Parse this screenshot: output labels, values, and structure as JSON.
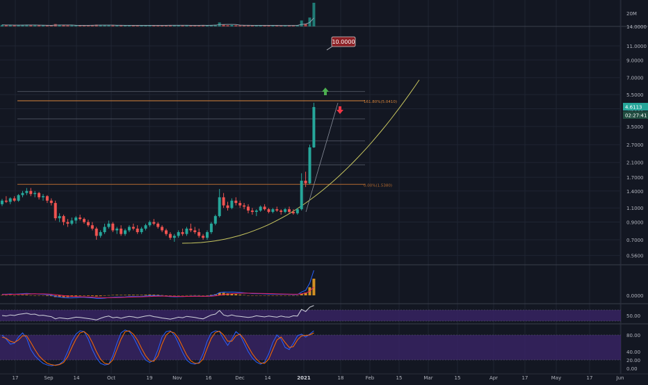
{
  "chart_data": {
    "type": "candlestick",
    "symbol_quote": "USDT",
    "price_axis": {
      "scale": "log",
      "ticks": [
        11.0,
        9.0,
        7.0,
        5.5,
        4.5,
        3.5,
        2.7,
        2.1,
        1.7,
        1.4,
        1.1,
        0.9,
        0.7,
        0.56
      ],
      "tick_labels": [
        "11.0000",
        "9.0000",
        "7.0000",
        "5.5000",
        "4.5000",
        "3.5000",
        "2.7000",
        "2.1000",
        "1.7000",
        "1.4000",
        "1.1000",
        "0.9000",
        "0.7000",
        "0.5600"
      ],
      "current_price": "4.6113",
      "countdown": "02:27:41",
      "target_label": "10.0000",
      "volume_tick": "20M",
      "volume_tick_top": "14.0000"
    },
    "time_axis": {
      "labels": [
        "17",
        "Sep",
        "14",
        "Oct",
        "19",
        "Nov",
        "16",
        "Dec",
        "14",
        "2021",
        "18",
        "Feb",
        "15",
        "Mar",
        "15",
        "Apr",
        "17",
        "May",
        "17",
        "Jun"
      ]
    },
    "fib_levels": [
      {
        "label": "161.80%(5.0410)",
        "price": 5.041
      },
      {
        "label": "",
        "price": 5.75
      },
      {
        "label": "",
        "price": 3.9
      },
      {
        "label": "",
        "price": 2.85
      },
      {
        "label": "",
        "price": 2.03
      },
      {
        "label": "0.00%(1.5380)",
        "price": 1.538
      }
    ],
    "candles": [
      {
        "o": 1.16,
        "h": 1.25,
        "l": 1.13,
        "c": 1.22
      },
      {
        "o": 1.22,
        "h": 1.3,
        "l": 1.18,
        "c": 1.2
      },
      {
        "o": 1.2,
        "h": 1.28,
        "l": 1.16,
        "c": 1.26
      },
      {
        "o": 1.26,
        "h": 1.3,
        "l": 1.2,
        "c": 1.22
      },
      {
        "o": 1.22,
        "h": 1.34,
        "l": 1.2,
        "c": 1.32
      },
      {
        "o": 1.32,
        "h": 1.4,
        "l": 1.28,
        "c": 1.36
      },
      {
        "o": 1.36,
        "h": 1.46,
        "l": 1.32,
        "c": 1.4
      },
      {
        "o": 1.4,
        "h": 1.46,
        "l": 1.3,
        "c": 1.34
      },
      {
        "o": 1.34,
        "h": 1.4,
        "l": 1.28,
        "c": 1.36
      },
      {
        "o": 1.36,
        "h": 1.38,
        "l": 1.24,
        "c": 1.28
      },
      {
        "o": 1.28,
        "h": 1.34,
        "l": 1.22,
        "c": 1.3
      },
      {
        "o": 1.3,
        "h": 1.32,
        "l": 1.18,
        "c": 1.22
      },
      {
        "o": 1.22,
        "h": 1.26,
        "l": 1.14,
        "c": 1.18
      },
      {
        "o": 1.18,
        "h": 1.22,
        "l": 0.92,
        "c": 0.95
      },
      {
        "o": 0.95,
        "h": 1.02,
        "l": 0.9,
        "c": 0.98
      },
      {
        "o": 0.98,
        "h": 1.0,
        "l": 0.86,
        "c": 0.9
      },
      {
        "o": 0.9,
        "h": 0.94,
        "l": 0.84,
        "c": 0.88
      },
      {
        "o": 0.88,
        "h": 0.96,
        "l": 0.86,
        "c": 0.92
      },
      {
        "o": 0.92,
        "h": 0.98,
        "l": 0.88,
        "c": 0.96
      },
      {
        "o": 0.96,
        "h": 1.0,
        "l": 0.92,
        "c": 0.94
      },
      {
        "o": 0.94,
        "h": 0.96,
        "l": 0.88,
        "c": 0.9
      },
      {
        "o": 0.9,
        "h": 0.93,
        "l": 0.84,
        "c": 0.86
      },
      {
        "o": 0.86,
        "h": 0.9,
        "l": 0.8,
        "c": 0.82
      },
      {
        "o": 0.82,
        "h": 0.84,
        "l": 0.7,
        "c": 0.74
      },
      {
        "o": 0.74,
        "h": 0.8,
        "l": 0.72,
        "c": 0.78
      },
      {
        "o": 0.78,
        "h": 0.88,
        "l": 0.76,
        "c": 0.84
      },
      {
        "o": 0.84,
        "h": 0.92,
        "l": 0.82,
        "c": 0.88
      },
      {
        "o": 0.88,
        "h": 0.9,
        "l": 0.78,
        "c": 0.8
      },
      {
        "o": 0.8,
        "h": 0.84,
        "l": 0.76,
        "c": 0.82
      },
      {
        "o": 0.82,
        "h": 0.86,
        "l": 0.74,
        "c": 0.76
      },
      {
        "o": 0.76,
        "h": 0.82,
        "l": 0.74,
        "c": 0.8
      },
      {
        "o": 0.8,
        "h": 0.86,
        "l": 0.78,
        "c": 0.84
      },
      {
        "o": 0.84,
        "h": 0.88,
        "l": 0.8,
        "c": 0.82
      },
      {
        "o": 0.82,
        "h": 0.86,
        "l": 0.76,
        "c": 0.78
      },
      {
        "o": 0.78,
        "h": 0.84,
        "l": 0.76,
        "c": 0.82
      },
      {
        "o": 0.82,
        "h": 0.88,
        "l": 0.8,
        "c": 0.86
      },
      {
        "o": 0.86,
        "h": 0.92,
        "l": 0.84,
        "c": 0.9
      },
      {
        "o": 0.9,
        "h": 0.94,
        "l": 0.86,
        "c": 0.88
      },
      {
        "o": 0.88,
        "h": 0.9,
        "l": 0.82,
        "c": 0.84
      },
      {
        "o": 0.84,
        "h": 0.86,
        "l": 0.78,
        "c": 0.8
      },
      {
        "o": 0.8,
        "h": 0.82,
        "l": 0.74,
        "c": 0.76
      },
      {
        "o": 0.76,
        "h": 0.78,
        "l": 0.7,
        "c": 0.72
      },
      {
        "o": 0.72,
        "h": 0.76,
        "l": 0.68,
        "c": 0.74
      },
      {
        "o": 0.74,
        "h": 0.8,
        "l": 0.72,
        "c": 0.78
      },
      {
        "o": 0.78,
        "h": 0.82,
        "l": 0.74,
        "c": 0.76
      },
      {
        "o": 0.76,
        "h": 0.84,
        "l": 0.74,
        "c": 0.82
      },
      {
        "o": 0.82,
        "h": 0.88,
        "l": 0.78,
        "c": 0.8
      },
      {
        "o": 0.8,
        "h": 0.84,
        "l": 0.76,
        "c": 0.78
      },
      {
        "o": 0.78,
        "h": 0.82,
        "l": 0.72,
        "c": 0.74
      },
      {
        "o": 0.74,
        "h": 0.76,
        "l": 0.7,
        "c": 0.72
      },
      {
        "o": 0.72,
        "h": 0.8,
        "l": 0.7,
        "c": 0.78
      },
      {
        "o": 0.78,
        "h": 0.9,
        "l": 0.76,
        "c": 0.88
      },
      {
        "o": 0.88,
        "h": 1.0,
        "l": 0.86,
        "c": 0.98
      },
      {
        "o": 0.98,
        "h": 1.44,
        "l": 0.96,
        "c": 1.28
      },
      {
        "o": 1.28,
        "h": 1.36,
        "l": 1.1,
        "c": 1.14
      },
      {
        "o": 1.14,
        "h": 1.2,
        "l": 1.06,
        "c": 1.1
      },
      {
        "o": 1.1,
        "h": 1.26,
        "l": 1.08,
        "c": 1.22
      },
      {
        "o": 1.22,
        "h": 1.28,
        "l": 1.14,
        "c": 1.18
      },
      {
        "o": 1.18,
        "h": 1.22,
        "l": 1.1,
        "c": 1.14
      },
      {
        "o": 1.14,
        "h": 1.18,
        "l": 1.08,
        "c": 1.12
      },
      {
        "o": 1.12,
        "h": 1.16,
        "l": 1.02,
        "c": 1.06
      },
      {
        "o": 1.06,
        "h": 1.1,
        "l": 1.0,
        "c": 1.04
      },
      {
        "o": 1.04,
        "h": 1.08,
        "l": 0.98,
        "c": 1.06
      },
      {
        "o": 1.06,
        "h": 1.14,
        "l": 1.04,
        "c": 1.12
      },
      {
        "o": 1.12,
        "h": 1.16,
        "l": 1.06,
        "c": 1.08
      },
      {
        "o": 1.08,
        "h": 1.1,
        "l": 1.02,
        "c": 1.04
      },
      {
        "o": 1.04,
        "h": 1.1,
        "l": 1.02,
        "c": 1.08
      },
      {
        "o": 1.08,
        "h": 1.12,
        "l": 1.04,
        "c": 1.06
      },
      {
        "o": 1.06,
        "h": 1.08,
        "l": 1.0,
        "c": 1.04
      },
      {
        "o": 1.04,
        "h": 1.1,
        "l": 1.02,
        "c": 1.08
      },
      {
        "o": 1.08,
        "h": 1.12,
        "l": 1.02,
        "c": 1.04
      },
      {
        "o": 1.04,
        "h": 1.08,
        "l": 1.0,
        "c": 1.02
      },
      {
        "o": 1.02,
        "h": 1.1,
        "l": 1.0,
        "c": 1.08
      },
      {
        "o": 1.08,
        "h": 1.8,
        "l": 1.06,
        "c": 1.62
      },
      {
        "o": 1.62,
        "h": 1.84,
        "l": 1.48,
        "c": 1.56
      },
      {
        "o": 1.56,
        "h": 2.7,
        "l": 1.54,
        "c": 2.6
      },
      {
        "o": 2.6,
        "h": 4.9,
        "l": 2.58,
        "c": 4.61
      }
    ],
    "volumes": [
      8,
      6,
      7,
      5,
      7,
      8,
      9,
      6,
      5,
      6,
      5,
      6,
      5,
      12,
      7,
      6,
      5,
      5,
      6,
      5,
      5,
      6,
      6,
      9,
      6,
      6,
      6,
      5,
      5,
      6,
      5,
      6,
      5,
      5,
      5,
      6,
      6,
      5,
      5,
      5,
      6,
      7,
      5,
      5,
      5,
      6,
      5,
      5,
      6,
      6,
      5,
      7,
      8,
      20,
      9,
      6,
      7,
      6,
      5,
      5,
      6,
      5,
      5,
      6,
      5,
      5,
      5,
      5,
      5,
      5,
      5,
      5,
      6,
      30,
      14,
      45,
      120
    ],
    "macd": {
      "macd_line": [
        0.02,
        0.02,
        0.025,
        0.02,
        0.025,
        0.03,
        0.035,
        0.03,
        0.028,
        0.022,
        0.02,
        0.012,
        0.005,
        -0.02,
        -0.03,
        -0.04,
        -0.045,
        -0.045,
        -0.04,
        -0.035,
        -0.035,
        -0.04,
        -0.045,
        -0.055,
        -0.055,
        -0.05,
        -0.04,
        -0.035,
        -0.03,
        -0.03,
        -0.028,
        -0.022,
        -0.02,
        -0.02,
        -0.018,
        -0.012,
        -0.005,
        -0.004,
        -0.005,
        -0.01,
        -0.015,
        -0.022,
        -0.025,
        -0.024,
        -0.022,
        -0.018,
        -0.015,
        -0.014,
        -0.015,
        -0.018,
        -0.016,
        -0.005,
        0.01,
        0.05,
        0.06,
        0.058,
        0.06,
        0.058,
        0.052,
        0.046,
        0.038,
        0.032,
        0.03,
        0.03,
        0.027,
        0.024,
        0.022,
        0.02,
        0.018,
        0.018,
        0.017,
        0.014,
        0.014,
        0.06,
        0.09,
        0.22,
        0.45
      ],
      "signal_line": [
        0.015,
        0.016,
        0.018,
        0.019,
        0.02,
        0.022,
        0.025,
        0.027,
        0.028,
        0.027,
        0.026,
        0.023,
        0.02,
        0.012,
        0.004,
        -0.004,
        -0.012,
        -0.018,
        -0.022,
        -0.025,
        -0.027,
        -0.029,
        -0.032,
        -0.036,
        -0.04,
        -0.042,
        -0.042,
        -0.041,
        -0.039,
        -0.037,
        -0.035,
        -0.032,
        -0.03,
        -0.028,
        -0.026,
        -0.023,
        -0.02,
        -0.017,
        -0.015,
        -0.014,
        -0.014,
        -0.016,
        -0.018,
        -0.019,
        -0.02,
        -0.019,
        -0.018,
        -0.017,
        -0.017,
        -0.017,
        -0.017,
        -0.015,
        -0.01,
        0.002,
        0.014,
        0.022,
        0.03,
        0.035,
        0.038,
        0.04,
        0.039,
        0.038,
        0.036,
        0.035,
        0.033,
        0.031,
        0.029,
        0.027,
        0.025,
        0.024,
        0.022,
        0.021,
        0.02,
        0.028,
        0.04,
        0.075,
        0.15
      ],
      "zero_label": "0.0000"
    },
    "rsi": {
      "values": [
        50,
        48,
        52,
        50,
        54,
        56,
        58,
        54,
        55,
        50,
        51,
        48,
        46,
        38,
        42,
        40,
        38,
        41,
        44,
        43,
        41,
        39,
        37,
        34,
        40,
        45,
        48,
        42,
        44,
        40,
        44,
        47,
        45,
        42,
        45,
        48,
        50,
        46,
        44,
        41,
        39,
        37,
        40,
        44,
        42,
        47,
        45,
        43,
        40,
        38,
        45,
        52,
        55,
        68,
        52,
        48,
        52,
        48,
        47,
        45,
        43,
        45,
        49,
        47,
        45,
        48,
        46,
        44,
        48,
        45,
        44,
        49,
        48,
        72,
        64,
        80,
        86
      ],
      "band_top": 70,
      "band_bottom": 30,
      "tick": "50.00"
    },
    "stoch": {
      "k": [
        80,
        70,
        58,
        60,
        75,
        85,
        72,
        45,
        30,
        20,
        12,
        8,
        6,
        8,
        10,
        18,
        40,
        65,
        82,
        90,
        88,
        70,
        45,
        25,
        12,
        8,
        10,
        30,
        60,
        85,
        92,
        88,
        75,
        55,
        35,
        20,
        14,
        20,
        45,
        75,
        88,
        90,
        80,
        60,
        38,
        20,
        12,
        10,
        14,
        35,
        65,
        85,
        90,
        88,
        70,
        55,
        70,
        88,
        80,
        60,
        40,
        25,
        15,
        10,
        15,
        35,
        62,
        80,
        70,
        50,
        45,
        60,
        78,
        82,
        75,
        82,
        90
      ],
      "d": [
        75,
        72,
        65,
        62,
        68,
        78,
        78,
        62,
        45,
        30,
        20,
        12,
        9,
        7,
        9,
        14,
        28,
        50,
        70,
        85,
        88,
        80,
        62,
        40,
        22,
        12,
        10,
        20,
        45,
        70,
        88,
        90,
        82,
        68,
        48,
        30,
        18,
        17,
        30,
        58,
        80,
        88,
        85,
        72,
        52,
        32,
        18,
        12,
        12,
        22,
        48,
        72,
        86,
        89,
        80,
        65,
        65,
        78,
        82,
        70,
        52,
        35,
        22,
        13,
        12,
        22,
        45,
        68,
        75,
        62,
        50,
        52,
        68,
        78,
        79,
        80,
        85
      ],
      "ticks": [
        "80.00",
        "40.00",
        "20.00",
        "0.00"
      ]
    }
  }
}
